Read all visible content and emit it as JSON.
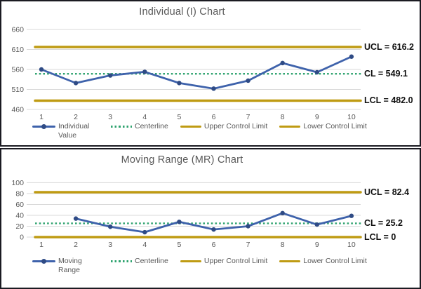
{
  "colors": {
    "series_blue": "#3E62AB",
    "marker_blue": "#2F4B85",
    "centerline_green": "#2EA36F",
    "limit_gold": "#BF9B13",
    "gridline": "#D9D9D9",
    "axis_text": "#595959",
    "border": "#1B1B22"
  },
  "chart_data": [
    {
      "type": "line",
      "title": "Individual (I) Chart",
      "x": [
        1,
        2,
        3,
        4,
        5,
        6,
        7,
        8,
        9,
        10
      ],
      "series": [
        {
          "name": "Individual Value",
          "values": [
            560,
            526,
            545,
            554,
            526,
            512,
            532,
            576,
            553,
            592
          ]
        }
      ],
      "centerline": 549.1,
      "ucl": 616.2,
      "lcl": 482.0,
      "yticks": [
        460,
        510,
        560,
        610,
        660
      ],
      "ylim": [
        455,
        680
      ],
      "grid": true,
      "legend_position": "bottom",
      "annotations": {
        "ucl": "UCL = 616.2",
        "cl": "CL = 549.1",
        "lcl": "LCL = 482.0"
      },
      "legend": [
        {
          "label": "Individual Value",
          "swatch": "line-marker"
        },
        {
          "label": "Centerline",
          "swatch": "dotted"
        },
        {
          "label": "Upper Control Limit",
          "swatch": "solid"
        },
        {
          "label": "Lower Control Limit",
          "swatch": "solid"
        }
      ]
    },
    {
      "type": "line",
      "title": "Moving Range (MR) Chart",
      "x": [
        1,
        2,
        3,
        4,
        5,
        6,
        7,
        8,
        9,
        10
      ],
      "series": [
        {
          "name": "Moving Range",
          "values": [
            null,
            34,
            19,
            9,
            28,
            14,
            20,
            44,
            23,
            39
          ]
        }
      ],
      "centerline": 25.2,
      "ucl": 82.4,
      "lcl": 0,
      "yticks": [
        0,
        20,
        40,
        60,
        80,
        100
      ],
      "ylim": [
        0,
        110
      ],
      "grid": true,
      "legend_position": "bottom",
      "annotations": {
        "ucl": "UCL = 82.4",
        "cl": "CL = 25.2",
        "lcl": "LCL = 0"
      },
      "legend": [
        {
          "label": "Moving Range",
          "swatch": "line-marker"
        },
        {
          "label": "Centerline",
          "swatch": "dotted"
        },
        {
          "label": "Upper Control Limit",
          "swatch": "solid"
        },
        {
          "label": "Lower Control Limit",
          "swatch": "solid"
        }
      ]
    }
  ]
}
